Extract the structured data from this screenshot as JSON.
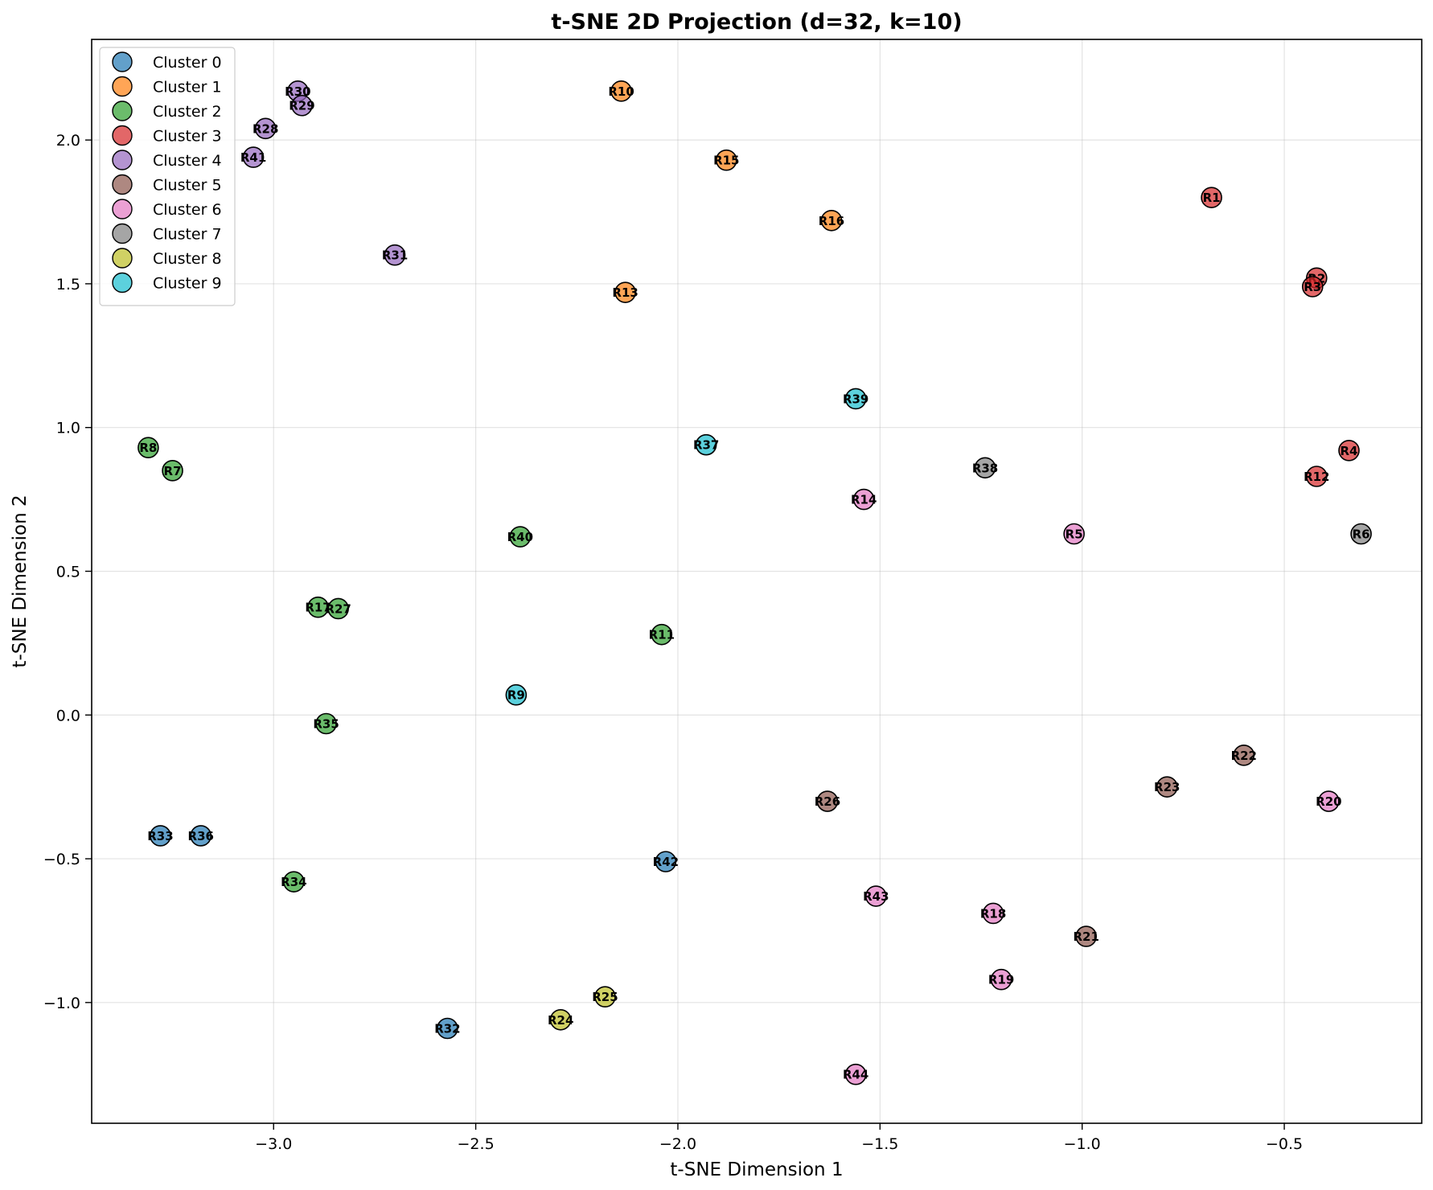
{
  "chart_data": {
    "type": "scatter",
    "title": "t-SNE 2D Projection (d=32, k=10)",
    "xlabel": "t-SNE Dimension 1",
    "ylabel": "t-SNE Dimension 2",
    "xlim": [
      -3.45,
      -0.16
    ],
    "ylim": [
      -1.42,
      2.35
    ],
    "xticks": [
      -3.0,
      -2.5,
      -2.0,
      -1.5,
      -1.0,
      -0.5
    ],
    "xtick_labels": [
      "−3.0",
      "−2.5",
      "−2.0",
      "−1.5",
      "−1.0",
      "−0.5"
    ],
    "yticks": [
      -1.0,
      -0.5,
      0.0,
      0.5,
      1.0,
      1.5,
      2.0
    ],
    "ytick_labels": [
      "−1.0",
      "−0.5",
      "0.0",
      "0.5",
      "1.0",
      "1.5",
      "2.0"
    ],
    "grid": true,
    "legend_position": "top-left",
    "series": [
      {
        "name": "Cluster 0",
        "color": "#1f77b4",
        "points": [
          {
            "label": "R33",
            "x": -3.28,
            "y": -0.42
          },
          {
            "label": "R36",
            "x": -3.18,
            "y": -0.42
          },
          {
            "label": "R42",
            "x": -2.03,
            "y": -0.51
          },
          {
            "label": "R32",
            "x": -2.57,
            "y": -1.09
          }
        ]
      },
      {
        "name": "Cluster 1",
        "color": "#ff7f0e",
        "points": [
          {
            "label": "R10",
            "x": -2.14,
            "y": 2.17
          },
          {
            "label": "R15",
            "x": -1.88,
            "y": 1.93
          },
          {
            "label": "R16",
            "x": -1.62,
            "y": 1.72
          },
          {
            "label": "R13",
            "x": -2.13,
            "y": 1.47
          }
        ]
      },
      {
        "name": "Cluster 2",
        "color": "#2ca02c",
        "points": [
          {
            "label": "R8",
            "x": -3.31,
            "y": 0.93
          },
          {
            "label": "R7",
            "x": -3.25,
            "y": 0.85
          },
          {
            "label": "R40",
            "x": -2.39,
            "y": 0.62
          },
          {
            "label": "R17",
            "x": -2.89,
            "y": 0.375
          },
          {
            "label": "R27",
            "x": -2.84,
            "y": 0.37
          },
          {
            "label": "R11",
            "x": -2.04,
            "y": 0.28
          },
          {
            "label": "R35",
            "x": -2.87,
            "y": -0.03
          },
          {
            "label": "R34",
            "x": -2.95,
            "y": -0.58
          }
        ]
      },
      {
        "name": "Cluster 3",
        "color": "#d62728",
        "points": [
          {
            "label": "R1",
            "x": -0.68,
            "y": 1.8
          },
          {
            "label": "R2",
            "x": -0.42,
            "y": 1.52
          },
          {
            "label": "R3",
            "x": -0.43,
            "y": 1.49
          },
          {
            "label": "R4",
            "x": -0.34,
            "y": 0.92
          },
          {
            "label": "R12",
            "x": -0.42,
            "y": 0.83
          }
        ]
      },
      {
        "name": "Cluster 4",
        "color": "#9467bd",
        "points": [
          {
            "label": "R30",
            "x": -2.94,
            "y": 2.17
          },
          {
            "label": "R29",
            "x": -2.93,
            "y": 2.12
          },
          {
            "label": "R28",
            "x": -3.02,
            "y": 2.04
          },
          {
            "label": "R41",
            "x": -3.05,
            "y": 1.94
          },
          {
            "label": "R31",
            "x": -2.7,
            "y": 1.6
          }
        ]
      },
      {
        "name": "Cluster 5",
        "color": "#8c564b",
        "points": [
          {
            "label": "R22",
            "x": -0.6,
            "y": -0.14
          },
          {
            "label": "R23",
            "x": -0.79,
            "y": -0.25
          },
          {
            "label": "R26",
            "x": -1.63,
            "y": -0.3
          },
          {
            "label": "R21",
            "x": -0.99,
            "y": -0.77
          }
        ]
      },
      {
        "name": "Cluster 6",
        "color": "#e377c2",
        "points": [
          {
            "label": "R14",
            "x": -1.54,
            "y": 0.75
          },
          {
            "label": "R5",
            "x": -1.02,
            "y": 0.63
          },
          {
            "label": "R20",
            "x": -0.39,
            "y": -0.3
          },
          {
            "label": "R43",
            "x": -1.51,
            "y": -0.63
          },
          {
            "label": "R18",
            "x": -1.22,
            "y": -0.69
          },
          {
            "label": "R19",
            "x": -1.2,
            "y": -0.92
          },
          {
            "label": "R44",
            "x": -1.56,
            "y": -1.25
          }
        ]
      },
      {
        "name": "Cluster 7",
        "color": "#7f7f7f",
        "points": [
          {
            "label": "R38",
            "x": -1.24,
            "y": 0.86
          },
          {
            "label": "R6",
            "x": -0.31,
            "y": 0.63
          }
        ]
      },
      {
        "name": "Cluster 8",
        "color": "#bcbd22",
        "points": [
          {
            "label": "R25",
            "x": -2.18,
            "y": -0.98
          },
          {
            "label": "R24",
            "x": -2.29,
            "y": -1.06
          }
        ]
      },
      {
        "name": "Cluster 9",
        "color": "#17becf",
        "points": [
          {
            "label": "R39",
            "x": -1.56,
            "y": 1.1
          },
          {
            "label": "R37",
            "x": -1.93,
            "y": 0.94
          },
          {
            "label": "R9",
            "x": -2.4,
            "y": 0.07
          }
        ]
      }
    ]
  }
}
